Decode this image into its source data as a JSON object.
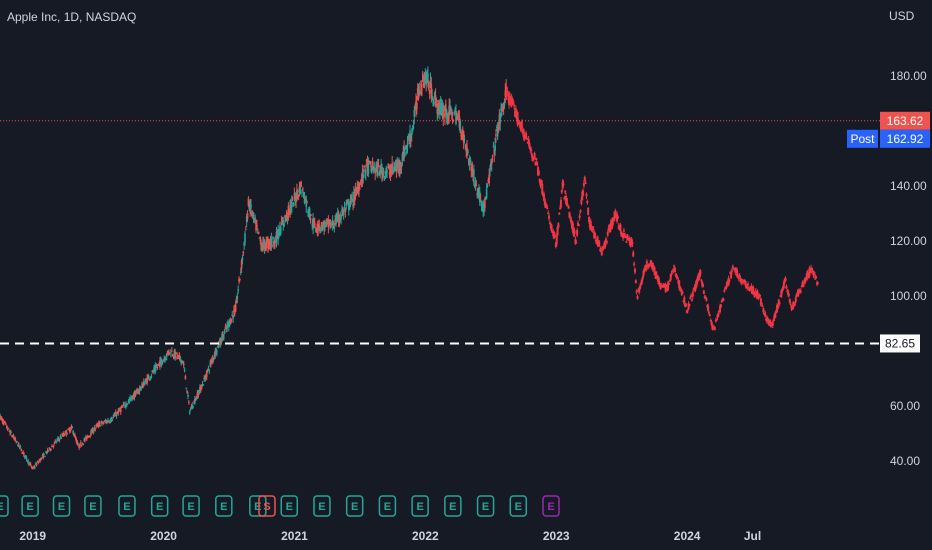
{
  "header": {
    "symbol": "Apple Inc, 1D, NASDAQ",
    "currency": "USD"
  },
  "colors": {
    "up": "#26a69a",
    "down": "#ef5350",
    "projection": "#f23645",
    "background": "#161a25",
    "text": "#d1d4dc",
    "post_badge": "#2962ff",
    "price_badge": "#ef5350"
  },
  "chart_data": {
    "type": "candlestick",
    "y_axis": {
      "ticks": [
        40,
        60,
        80,
        100,
        120,
        140,
        160,
        180
      ],
      "tick_labels": [
        "40.00",
        "60.00",
        "",
        "100.00",
        "120.00",
        "140.00",
        "",
        "180.00"
      ],
      "range": [
        33,
        193
      ]
    },
    "x_axis": {
      "labels": [
        "2019",
        "2020",
        "2021",
        "2022",
        "2023",
        "2024",
        "Jul"
      ],
      "range": [
        2018.75,
        2025.0
      ],
      "label_positions": [
        2019.0,
        2020.0,
        2021.0,
        2022.0,
        2023.0,
        2024.0,
        2024.5
      ]
    },
    "price_series": {
      "name": "",
      "x": [
        2018.75,
        2018.9,
        2019.0,
        2019.05,
        2019.2,
        2019.3,
        2019.35,
        2019.5,
        2019.6,
        2019.8,
        2019.95,
        2020.05,
        2020.15,
        2020.2,
        2020.3,
        2020.4,
        2020.55,
        2020.62,
        2020.65,
        2020.75,
        2020.85,
        2020.95,
        2021.05,
        2021.15,
        2021.3,
        2021.45,
        2021.55,
        2021.7,
        2021.8,
        2021.9,
        2021.95,
        2022.0,
        2022.1,
        2022.25,
        2022.4,
        2022.45,
        2022.55,
        2022.62
      ],
      "y": [
        56,
        45,
        37,
        40,
        48,
        52,
        45,
        53,
        55,
        65,
        74,
        80,
        76,
        58,
        68,
        80,
        95,
        120,
        134,
        118,
        120,
        130,
        140,
        125,
        126,
        135,
        147,
        145,
        147,
        160,
        175,
        180,
        168,
        165,
        138,
        132,
        160,
        174
      ]
    },
    "projection_series": {
      "name": "",
      "x": [
        2022.62,
        2022.72,
        2022.85,
        2022.95,
        2023.0,
        2023.05,
        2023.15,
        2023.22,
        2023.25,
        2023.35,
        2023.45,
        2023.5,
        2023.58,
        2023.62,
        2023.68,
        2023.72,
        2023.8,
        2023.85,
        2023.9,
        2024.0,
        2024.1,
        2024.2,
        2024.28,
        2024.35,
        2024.45,
        2024.55,
        2024.6,
        2024.65,
        2024.75,
        2024.8,
        2024.85,
        2024.95,
        2025.0
      ],
      "y": [
        174,
        163,
        148,
        127,
        119,
        140,
        120,
        143,
        127,
        116,
        130,
        123,
        119,
        100,
        110,
        113,
        103,
        103,
        110,
        95,
        108,
        87,
        100,
        110,
        104,
        100,
        92,
        89,
        106,
        95,
        101,
        110,
        104
      ]
    },
    "reference_lines": [
      {
        "value": 163.62,
        "style": "dotted",
        "label": "163.62"
      },
      {
        "value": 82.65,
        "style": "dashed",
        "label": "82.65"
      }
    ],
    "post_market": {
      "label": "Post",
      "value": "162.92"
    },
    "events": [
      {
        "x": 2018.75,
        "type": "E"
      },
      {
        "x": 2018.98,
        "type": "E"
      },
      {
        "x": 2019.22,
        "type": "E"
      },
      {
        "x": 2019.46,
        "type": "E"
      },
      {
        "x": 2019.72,
        "type": "E"
      },
      {
        "x": 2019.97,
        "type": "E"
      },
      {
        "x": 2020.21,
        "type": "E"
      },
      {
        "x": 2020.46,
        "type": "E"
      },
      {
        "x": 2020.72,
        "type": "E"
      },
      {
        "x": 2020.79,
        "type": "S"
      },
      {
        "x": 2020.96,
        "type": "E"
      },
      {
        "x": 2021.21,
        "type": "E"
      },
      {
        "x": 2021.46,
        "type": "E"
      },
      {
        "x": 2021.71,
        "type": "E"
      },
      {
        "x": 2021.96,
        "type": "E"
      },
      {
        "x": 2022.21,
        "type": "E"
      },
      {
        "x": 2022.46,
        "type": "E"
      },
      {
        "x": 2022.71,
        "type": "E"
      },
      {
        "x": 2022.96,
        "type": "E",
        "highlight": true
      }
    ]
  }
}
